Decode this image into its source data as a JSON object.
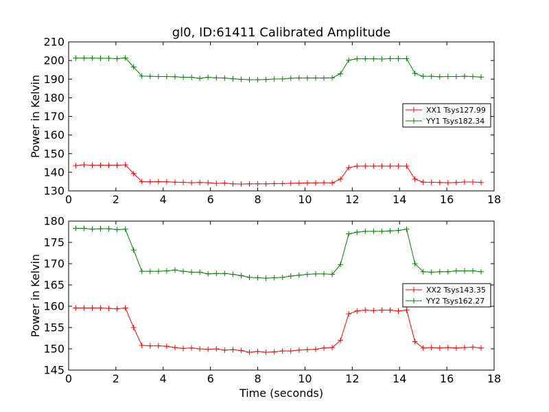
{
  "chart_data": [
    {
      "type": "line",
      "title": "gl0, ID:61411 Calibrated Amplitude",
      "xlabel": "",
      "ylabel": "Power in Kelvin",
      "xlim": [
        0,
        18
      ],
      "ylim": [
        130,
        210
      ],
      "xticks": [
        0,
        2,
        4,
        6,
        8,
        10,
        12,
        14,
        16,
        18
      ],
      "yticks": [
        130,
        140,
        150,
        160,
        170,
        180,
        190,
        200,
        210
      ],
      "legend_position": "center-right",
      "x": [
        0.3,
        0.65,
        1.0,
        1.35,
        1.7,
        2.05,
        2.4,
        2.75,
        3.1,
        3.45,
        3.8,
        4.15,
        4.5,
        4.85,
        5.2,
        5.55,
        5.9,
        6.25,
        6.6,
        6.95,
        7.3,
        7.65,
        8.0,
        8.35,
        8.7,
        9.05,
        9.4,
        9.75,
        10.1,
        10.45,
        10.8,
        11.15,
        11.5,
        11.85,
        12.2,
        12.55,
        12.9,
        13.25,
        13.6,
        13.95,
        14.3,
        14.65,
        15.0,
        15.35,
        15.7,
        16.05,
        16.4,
        16.75,
        17.1,
        17.45
      ],
      "series": [
        {
          "name": "XX1 Tsys127.99",
          "color": "#ff0000",
          "values": [
            143.6,
            144.0,
            143.8,
            143.8,
            143.8,
            143.8,
            144.0,
            139.3,
            135.0,
            134.9,
            135.0,
            134.9,
            134.7,
            134.6,
            134.4,
            134.5,
            134.4,
            134.0,
            134.2,
            133.8,
            133.7,
            133.8,
            133.8,
            133.8,
            133.9,
            133.9,
            134.1,
            134.2,
            134.3,
            134.3,
            134.4,
            134.3,
            136.3,
            142.5,
            143.3,
            143.3,
            143.3,
            143.3,
            143.3,
            143.3,
            143.3,
            136.3,
            134.7,
            134.6,
            134.5,
            134.4,
            134.5,
            134.8,
            134.8,
            134.5
          ]
        },
        {
          "name": "YY1 Tsys182.34",
          "color": "#008000",
          "values": [
            201.3,
            201.3,
            201.3,
            201.2,
            201.2,
            201.0,
            201.4,
            196.5,
            191.6,
            191.5,
            191.4,
            191.4,
            191.3,
            191.0,
            191.0,
            190.4,
            191.0,
            190.7,
            190.6,
            190.2,
            189.9,
            189.7,
            189.7,
            189.8,
            190.1,
            190.1,
            190.5,
            190.6,
            190.6,
            190.6,
            190.6,
            190.7,
            192.9,
            200.2,
            200.9,
            200.9,
            200.9,
            200.8,
            201.0,
            201.0,
            201.0,
            193.1,
            191.5,
            191.5,
            191.3,
            191.4,
            191.4,
            191.5,
            191.4,
            191.1
          ]
        }
      ]
    },
    {
      "type": "line",
      "title": "",
      "xlabel": "Time (seconds)",
      "ylabel": "Power in Kelvin",
      "xlim": [
        0,
        18
      ],
      "ylim": [
        145,
        180
      ],
      "xticks": [
        0,
        2,
        4,
        6,
        8,
        10,
        12,
        14,
        16,
        18
      ],
      "yticks": [
        145,
        150,
        155,
        160,
        165,
        170,
        175,
        180
      ],
      "legend_position": "center-right",
      "x": [
        0.3,
        0.65,
        1.0,
        1.35,
        1.7,
        2.05,
        2.4,
        2.75,
        3.1,
        3.45,
        3.8,
        4.15,
        4.5,
        4.85,
        5.2,
        5.55,
        5.9,
        6.25,
        6.6,
        6.95,
        7.3,
        7.65,
        8.0,
        8.35,
        8.7,
        9.05,
        9.4,
        9.75,
        10.1,
        10.45,
        10.8,
        11.15,
        11.5,
        11.85,
        12.2,
        12.55,
        12.9,
        13.25,
        13.6,
        13.95,
        14.3,
        14.65,
        15.0,
        15.35,
        15.7,
        16.05,
        16.4,
        16.75,
        17.1,
        17.45
      ],
      "series": [
        {
          "name": "XX2 Tsys143.35",
          "color": "#ff0000",
          "values": [
            159.6,
            159.6,
            159.6,
            159.6,
            159.5,
            159.4,
            159.6,
            155.0,
            150.8,
            150.7,
            150.7,
            150.6,
            150.3,
            150.1,
            150.2,
            150.0,
            149.9,
            150.0,
            149.7,
            149.8,
            149.6,
            149.2,
            149.4,
            149.2,
            149.3,
            149.5,
            149.5,
            149.7,
            149.8,
            149.9,
            150.2,
            150.3,
            152.0,
            158.2,
            158.9,
            159.1,
            159.0,
            159.1,
            159.1,
            158.9,
            159.1,
            151.7,
            150.2,
            150.3,
            150.2,
            150.3,
            150.2,
            150.3,
            150.4,
            150.2
          ]
        },
        {
          "name": "YY2 Tsys162.27",
          "color": "#008000",
          "values": [
            178.3,
            178.3,
            178.1,
            178.2,
            178.2,
            178.0,
            178.1,
            173.2,
            168.2,
            168.2,
            168.2,
            168.3,
            168.5,
            168.2,
            168.0,
            168.0,
            167.6,
            167.7,
            167.7,
            167.5,
            167.2,
            166.8,
            166.7,
            166.6,
            166.7,
            166.8,
            167.1,
            167.3,
            167.5,
            167.6,
            167.6,
            167.5,
            169.8,
            177.0,
            177.4,
            177.6,
            177.6,
            177.6,
            177.7,
            177.8,
            178.1,
            170.0,
            168.1,
            168.0,
            168.1,
            168.1,
            168.3,
            168.3,
            168.3,
            168.1
          ]
        }
      ]
    }
  ]
}
